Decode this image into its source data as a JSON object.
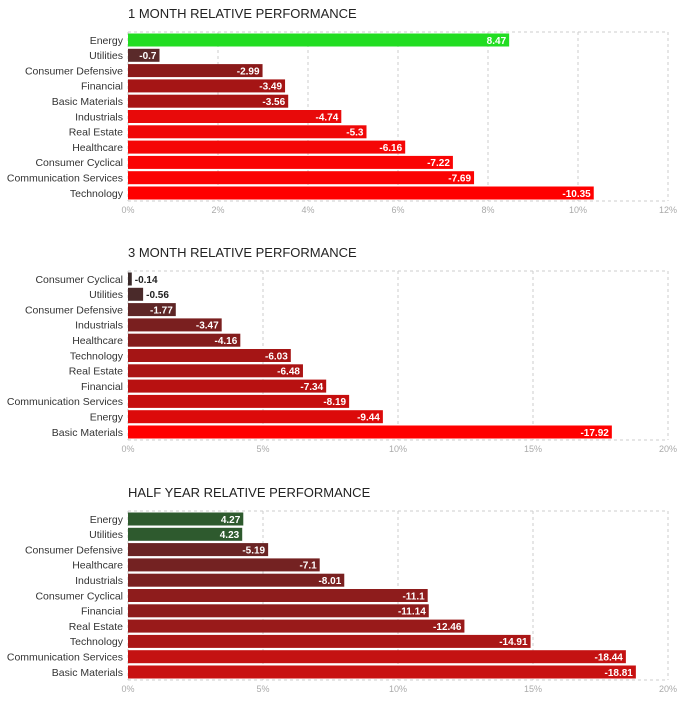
{
  "chart_data": [
    {
      "type": "bar",
      "orientation": "horizontal",
      "title": "1 MONTH RELATIVE PERFORMANCE",
      "categories": [
        "Energy",
        "Utilities",
        "Consumer Defensive",
        "Financial",
        "Basic Materials",
        "Industrials",
        "Real Estate",
        "Healthcare",
        "Consumer Cyclical",
        "Communication Services",
        "Technology"
      ],
      "values": [
        8.47,
        -0.7,
        -2.99,
        -3.49,
        -3.56,
        -4.74,
        -5.3,
        -6.16,
        -7.22,
        -7.69,
        -10.35
      ],
      "value_labels": [
        "8.47",
        "-0.7",
        "-2.99",
        "-3.49",
        "-3.56",
        "-4.74",
        "-5.3",
        "-6.16",
        "-7.22",
        "-7.69",
        "-10.35"
      ],
      "colors": [
        "#22dd22",
        "#5a2a2a",
        "#8b1a1a",
        "#a51515",
        "#a81414",
        "#e80a0a",
        "#f00808",
        "#f50606",
        "#fa0404",
        "#fb0303",
        "#ff0000"
      ],
      "xlim": [
        0,
        12
      ],
      "xticks": [
        0,
        2,
        4,
        6,
        8,
        10,
        12
      ],
      "xtick_labels": [
        "0%",
        "2%",
        "4%",
        "6%",
        "8%",
        "10%",
        "12%"
      ],
      "grid": true
    },
    {
      "type": "bar",
      "orientation": "horizontal",
      "title": "3 MONTH RELATIVE PERFORMANCE",
      "categories": [
        "Consumer Cyclical",
        "Utilities",
        "Consumer Defensive",
        "Industrials",
        "Healthcare",
        "Technology",
        "Real Estate",
        "Financial",
        "Communication Services",
        "Energy",
        "Basic Materials"
      ],
      "values": [
        -0.14,
        -0.56,
        -1.77,
        -3.47,
        -4.16,
        -6.03,
        -6.48,
        -7.34,
        -8.19,
        -9.44,
        -17.92
      ],
      "value_labels": [
        "-0.14",
        "-0.56",
        "-1.77",
        "-3.47",
        "-4.16",
        "-6.03",
        "-6.48",
        "-7.34",
        "-8.19",
        "-9.44",
        "-17.92"
      ],
      "colors": [
        "#3a2a2a",
        "#4a2a2a",
        "#5e2626",
        "#7a1f1f",
        "#841d1d",
        "#a51515",
        "#ab1414",
        "#b81111",
        "#c60e0e",
        "#dc0a0a",
        "#ff0000"
      ],
      "xlim": [
        0,
        20
      ],
      "xticks": [
        0,
        5,
        10,
        15,
        20
      ],
      "xtick_labels": [
        "0%",
        "5%",
        "10%",
        "15%",
        "20%"
      ],
      "grid": true
    },
    {
      "type": "bar",
      "orientation": "horizontal",
      "title": "HALF YEAR RELATIVE PERFORMANCE",
      "categories": [
        "Energy",
        "Utilities",
        "Consumer Defensive",
        "Healthcare",
        "Industrials",
        "Consumer Cyclical",
        "Financial",
        "Real Estate",
        "Technology",
        "Communication Services",
        "Basic Materials"
      ],
      "values": [
        4.27,
        4.23,
        -5.19,
        -7.1,
        -8.01,
        -11.1,
        -11.14,
        -12.46,
        -14.91,
        -18.44,
        -18.81
      ],
      "value_labels": [
        "4.27",
        "4.23",
        "-5.19",
        "-7.1",
        "-8.01",
        "-11.1",
        "-11.14",
        "-12.46",
        "-14.91",
        "-18.44",
        "-18.81"
      ],
      "colors": [
        "#2e5a2e",
        "#2e5a2e",
        "#6a2424",
        "#742222",
        "#7a2020",
        "#8e1c1c",
        "#8e1c1c",
        "#991a1a",
        "#ab1616",
        "#c41212",
        "#c81111"
      ],
      "xlim": [
        0,
        20
      ],
      "xticks": [
        0,
        5,
        10,
        15,
        20
      ],
      "xtick_labels": [
        "0%",
        "5%",
        "10%",
        "15%",
        "20%"
      ],
      "grid": true
    }
  ]
}
